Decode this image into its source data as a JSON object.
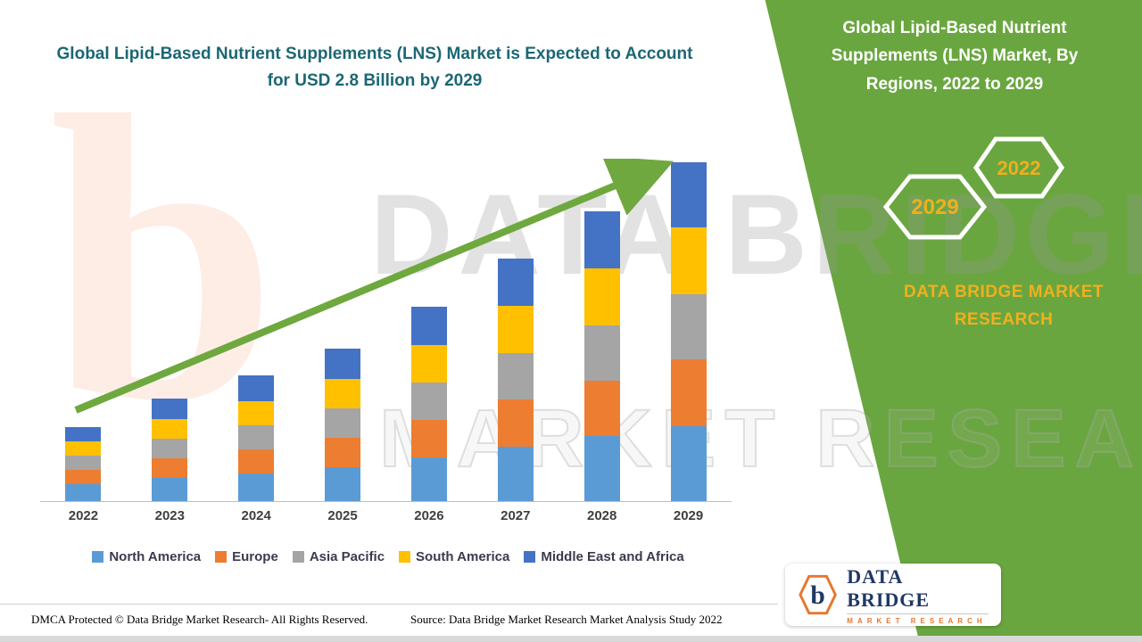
{
  "header": {
    "left_title": "Global Lipid-Based Nutrient Supplements (LNS) Market is Expected to Account for USD 2.8 Billion by 2029",
    "right_title": "Global Lipid-Based Nutrient Supplements (LNS) Market, By Regions, 2022 to 2029"
  },
  "badges": {
    "back_label": "2029",
    "front_label": "2022"
  },
  "brand": {
    "panel_text": "DATA BRIDGE MARKET RESEARCH",
    "logo_title": "DATA BRIDGE",
    "logo_subtitle": "MARKET RESEARCH",
    "logo_letter": "b"
  },
  "watermark": {
    "line1": "DATA BRIDGE",
    "line2": "MARKET RESEARCH",
    "letter": "b"
  },
  "footer": {
    "dmca": "DMCA Protected © Data Bridge Market Research- All Rights Reserved.",
    "source": "Source: Data Bridge Market Research Market Analysis Study 2022"
  },
  "colors": {
    "panel_green": "#6aa640",
    "arrow_green": "#6fa83f",
    "title_teal": "#1b6775",
    "accent_yellow": "#efb01e",
    "logo_navy": "#203864",
    "logo_orange": "#e8762d"
  },
  "chart_data": {
    "type": "bar",
    "stacked": true,
    "title": "Global Lipid-Based Nutrient Supplements (LNS) Market, By Regions, 2022 to 2029",
    "unit": "USD Billion",
    "categories": [
      "2022",
      "2023",
      "2024",
      "2025",
      "2026",
      "2027",
      "2028",
      "2029"
    ],
    "series": [
      {
        "name": "North America",
        "color": "#5b9bd5",
        "values": [
          0.14,
          0.19,
          0.23,
          0.28,
          0.36,
          0.45,
          0.54,
          0.62
        ]
      },
      {
        "name": "Europe",
        "color": "#ed7d31",
        "values": [
          0.12,
          0.16,
          0.2,
          0.24,
          0.31,
          0.39,
          0.46,
          0.55
        ]
      },
      {
        "name": "Asia Pacific",
        "color": "#a5a5a5",
        "values": [
          0.12,
          0.16,
          0.2,
          0.24,
          0.31,
          0.38,
          0.46,
          0.54
        ]
      },
      {
        "name": "South America",
        "color": "#ffc000",
        "values": [
          0.12,
          0.16,
          0.2,
          0.24,
          0.31,
          0.39,
          0.47,
          0.55
        ]
      },
      {
        "name": "Middle East and Africa",
        "color": "#4472c4",
        "values": [
          0.12,
          0.17,
          0.21,
          0.25,
          0.32,
          0.39,
          0.47,
          0.54
        ]
      }
    ],
    "totals": [
      0.62,
      0.84,
      1.04,
      1.25,
      1.61,
      2.0,
      2.4,
      2.8
    ],
    "ylim": [
      0,
      2.8
    ],
    "key_value": "USD 2.8 Billion by 2029",
    "legend_position": "bottom",
    "annotation": "green upward trend arrow across bars"
  }
}
